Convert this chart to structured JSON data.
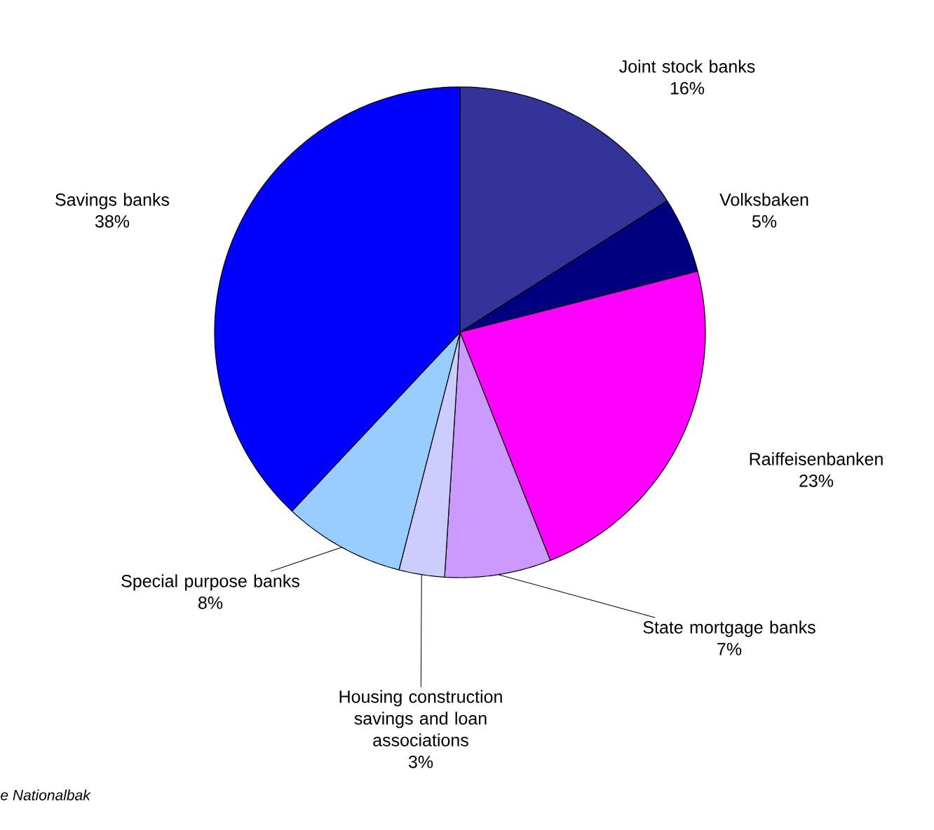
{
  "chart_data": {
    "type": "pie",
    "categories": [
      "Joint stock banks",
      "Volksbaken",
      "Raiffeisenbanken",
      "State mortgage banks",
      "Housing construction savings and loan associations",
      "Special purpose banks",
      "Savings banks"
    ],
    "values": [
      16,
      5,
      23,
      7,
      3,
      8,
      38
    ],
    "value_labels": [
      "16%",
      "5%",
      "23%",
      "7%",
      "3%",
      "8%",
      "38%"
    ],
    "colors": [
      "#333399",
      "#000080",
      "#ff00ff",
      "#cc99ff",
      "#ccccff",
      "#99ccff",
      "#0000ff"
    ],
    "annotations": [
      "e Nationalbak"
    ]
  }
}
